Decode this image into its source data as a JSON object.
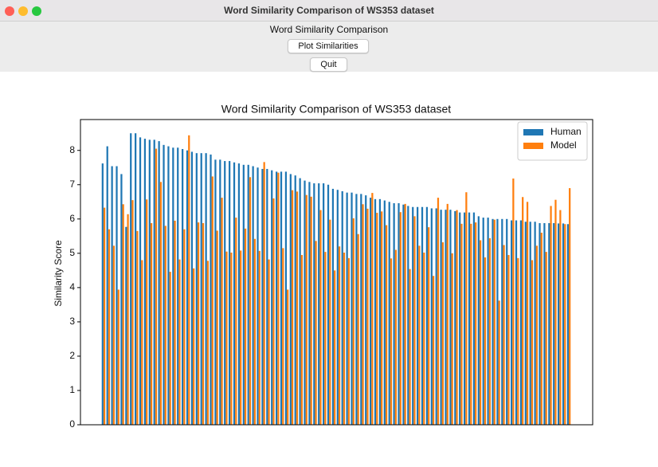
{
  "window": {
    "title": "Word Similarity Comparison of WS353 dataset"
  },
  "app": {
    "label": "Word Similarity Comparison",
    "buttons": [
      "Plot Similarities",
      "Quit"
    ]
  },
  "chart_data": {
    "type": "bar",
    "title": "Word Similarity Comparison of WS353 dataset",
    "ylabel": "Similarity Score",
    "categories": [
      null,
      null,
      null,
      null,
      null,
      null,
      null,
      null,
      null,
      null,
      null,
      null,
      null,
      null,
      null,
      null,
      null,
      null,
      null,
      null,
      null,
      null,
      null,
      null,
      null,
      null,
      null,
      null,
      null,
      null,
      null,
      null,
      null,
      null,
      null,
      null,
      null,
      null,
      null,
      null,
      null,
      null,
      null,
      null,
      null,
      null,
      null,
      null,
      null,
      null,
      null,
      null,
      null,
      null,
      null,
      null,
      null,
      null,
      null,
      null,
      null,
      null,
      null,
      null,
      null,
      null,
      null,
      null,
      null,
      null,
      null,
      null,
      null,
      null,
      null,
      null,
      null,
      null,
      null,
      null,
      null,
      null,
      null,
      null,
      null,
      null,
      null,
      null,
      null,
      null,
      null,
      null,
      null,
      null,
      null,
      null,
      null,
      null,
      null,
      null
    ],
    "series": [
      {
        "name": "Human",
        "color": "#1f77b4",
        "values": [
          7.62,
          8.12,
          7.54,
          7.54,
          7.31,
          5.77,
          8.5,
          8.5,
          8.38,
          8.34,
          8.31,
          8.31,
          8.27,
          8.16,
          8.12,
          8.08,
          8.08,
          8.04,
          8.0,
          7.96,
          7.92,
          7.92,
          7.92,
          7.88,
          7.73,
          7.73,
          7.69,
          7.69,
          7.65,
          7.62,
          7.58,
          7.58,
          7.54,
          7.5,
          7.46,
          7.46,
          7.42,
          7.38,
          7.38,
          7.38,
          7.31,
          7.27,
          7.19,
          7.12,
          7.08,
          7.04,
          7.04,
          7.04,
          7.0,
          6.88,
          6.85,
          6.81,
          6.77,
          6.77,
          6.73,
          6.73,
          6.69,
          6.62,
          6.58,
          6.58,
          6.54,
          6.5,
          6.46,
          6.46,
          6.42,
          6.38,
          6.35,
          6.35,
          6.35,
          6.35,
          6.31,
          6.31,
          6.27,
          6.27,
          6.27,
          6.23,
          6.19,
          6.19,
          6.19,
          6.19,
          6.08,
          6.04,
          6.04,
          6.0,
          6.0,
          6.0,
          6.0,
          5.96,
          5.96,
          5.96,
          5.92,
          5.92,
          5.92,
          5.88,
          5.88,
          5.88,
          5.88,
          5.87,
          5.87,
          5.85
        ]
      },
      {
        "name": "Model",
        "color": "#ff7f0e",
        "values": [
          6.33,
          5.7,
          5.22,
          3.94,
          6.43,
          6.14,
          6.55,
          5.65,
          4.8,
          6.57,
          5.88,
          8.05,
          7.08,
          5.8,
          4.46,
          5.95,
          4.82,
          5.7,
          8.44,
          4.56,
          5.9,
          5.88,
          4.78,
          7.24,
          5.66,
          6.62,
          5.05,
          5.02,
          6.04,
          5.08,
          5.72,
          7.22,
          5.42,
          5.07,
          7.66,
          4.82,
          6.6,
          7.35,
          5.15,
          3.94,
          6.84,
          6.8,
          4.95,
          6.7,
          6.65,
          5.36,
          6.26,
          5.04,
          5.98,
          4.5,
          5.2,
          5.02,
          4.86,
          6.02,
          5.56,
          6.43,
          6.3,
          6.76,
          6.18,
          6.22,
          5.82,
          4.85,
          5.1,
          6.2,
          6.44,
          4.54,
          6.08,
          5.22,
          5.02,
          5.76,
          4.34,
          6.62,
          5.32,
          6.44,
          5.0,
          6.26,
          5.86,
          6.78,
          5.86,
          5.9,
          5.38,
          4.88,
          5.44,
          5.98,
          3.62,
          5.24,
          4.95,
          7.18,
          4.86,
          6.64,
          6.5,
          4.8,
          5.22,
          5.6,
          5.04,
          6.38,
          6.56,
          6.26,
          5.85,
          6.9
        ]
      }
    ],
    "ylim": [
      0,
      8.9
    ],
    "yticks": [
      0,
      1,
      2,
      3,
      4,
      5,
      6,
      7,
      8
    ],
    "legend": "upper right"
  }
}
